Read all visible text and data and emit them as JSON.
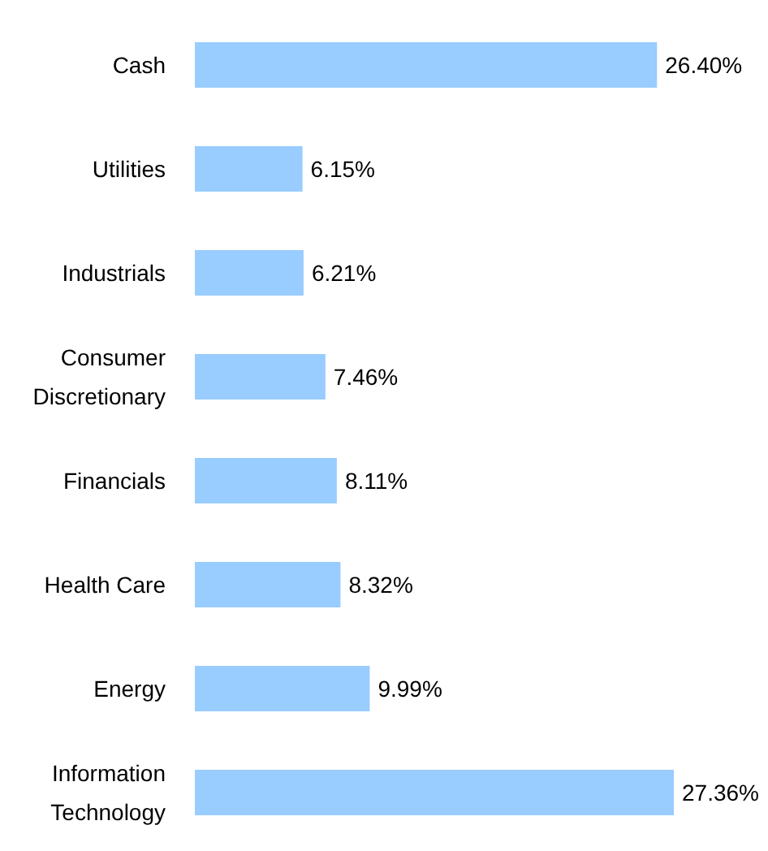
{
  "chart_data": {
    "type": "bar",
    "orientation": "horizontal",
    "categories": [
      "Cash",
      "Utilities",
      "Industrials",
      "Consumer Discretionary",
      "Financials",
      "Health Care",
      "Energy",
      "Information Technology"
    ],
    "values": [
      26.4,
      6.15,
      6.21,
      7.46,
      8.11,
      8.32,
      9.99,
      27.36
    ],
    "value_labels": [
      "26.40%",
      "6.15%",
      "6.21%",
      "7.46%",
      "8.11%",
      "8.32%",
      "9.99%",
      "27.36%"
    ],
    "color": "#99ccff",
    "grid": false,
    "legend": false
  }
}
